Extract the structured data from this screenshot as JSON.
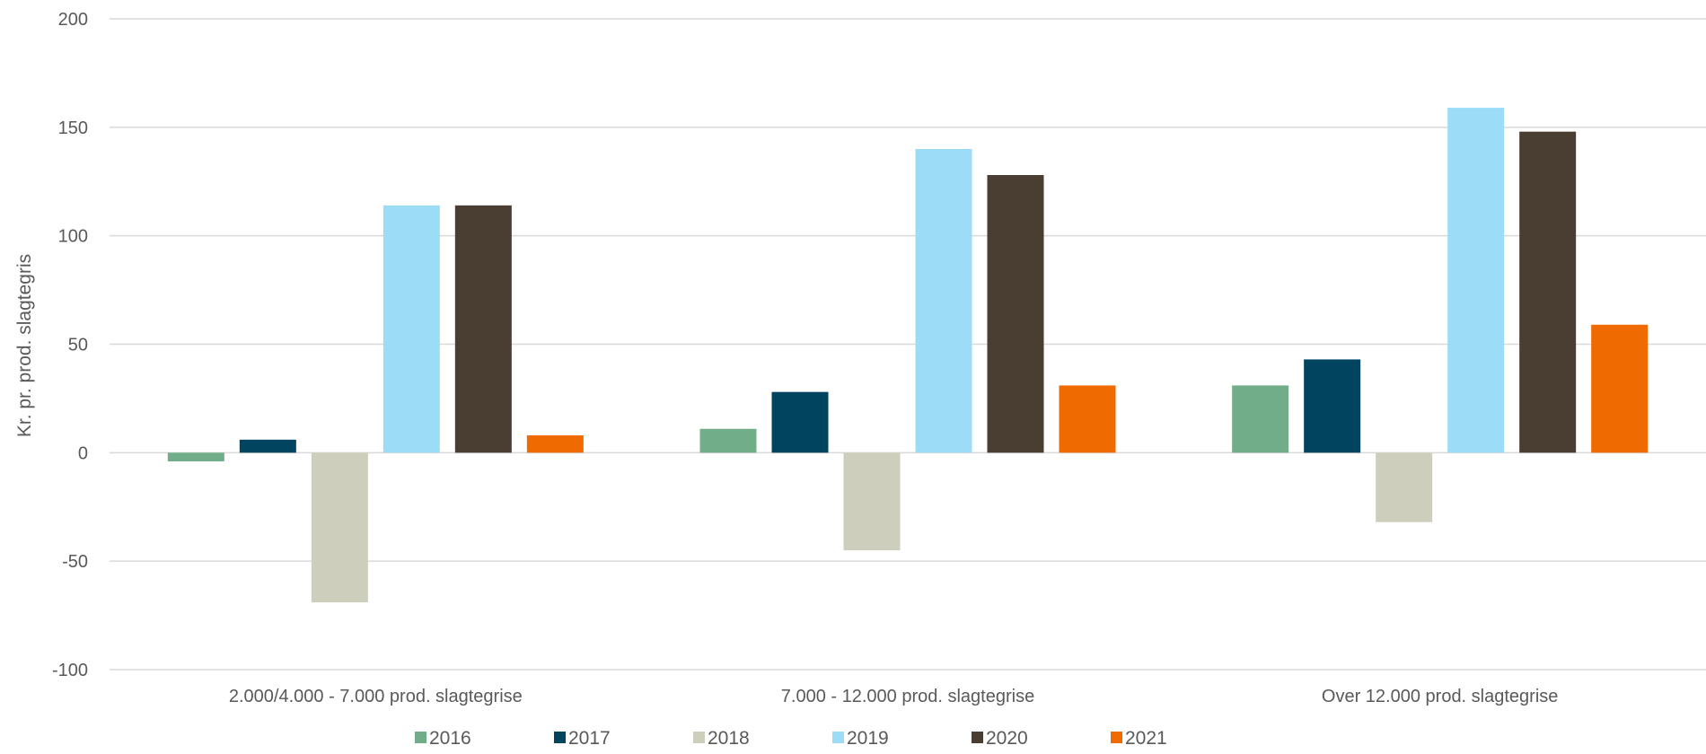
{
  "chart_data": {
    "type": "bar",
    "categories": [
      "2.000/4.000 - 7.000 prod. slagtegrise",
      "7.000 - 12.000 prod. slagtegrise",
      "Over 12.000 prod. slagtegrise"
    ],
    "series": [
      {
        "name": "2016",
        "color": "#72AD8A",
        "values": [
          -4,
          11,
          31
        ]
      },
      {
        "name": "2017",
        "color": "#004460",
        "values": [
          6,
          28,
          43
        ]
      },
      {
        "name": "2018",
        "color": "#CECEBD",
        "values": [
          -69,
          -45,
          -32
        ]
      },
      {
        "name": "2019",
        "color": "#9DDCF7",
        "values": [
          114,
          140,
          159
        ]
      },
      {
        "name": "2020",
        "color": "#4A3D31",
        "values": [
          114,
          128,
          148
        ]
      },
      {
        "name": "2021",
        "color": "#EF6A00",
        "values": [
          8,
          31,
          59
        ]
      }
    ],
    "title": "",
    "xlabel": "",
    "ylabel": "Kr. pr. prod. slagtegris",
    "ylim": [
      -100,
      200
    ],
    "yticks": [
      -100,
      -50,
      0,
      50,
      100,
      150,
      200
    ],
    "grid": true,
    "legend": "bottom"
  }
}
